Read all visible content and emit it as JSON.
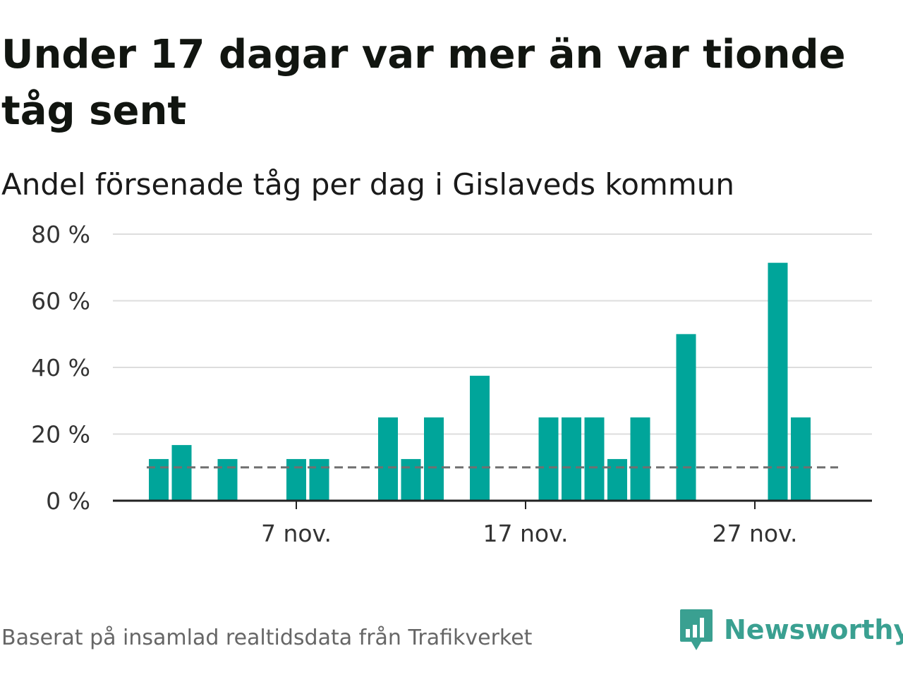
{
  "title": "Under 17 dagar var mer än var tionde tåg sent",
  "subtitle": "Andel försenade tåg per dag i Gislaveds kommun",
  "source": "Baserat på insamlad realtidsdata från Trafikverket",
  "brand": {
    "name": "Newsworthy",
    "logo_icon": "bar-chart-speech-bubble-icon"
  },
  "colors": {
    "bar": "#00a59a",
    "reference_line": "#707070",
    "grid": "#dddddd",
    "axis": "#222222",
    "brand": "#3aa091"
  },
  "chart_data": {
    "type": "bar",
    "x_unit": "day of November",
    "x": [
      1,
      2,
      3,
      4,
      5,
      6,
      7,
      8,
      9,
      10,
      11,
      12,
      13,
      14,
      15,
      16,
      17,
      18,
      19,
      20,
      21,
      22,
      23,
      24,
      25,
      26,
      27,
      28,
      29
    ],
    "values": [
      12.5,
      16.7,
      0,
      12.5,
      0,
      0,
      12.5,
      12.5,
      0,
      0,
      25,
      12.5,
      25,
      0,
      37.5,
      0,
      0,
      25,
      25,
      25,
      12.5,
      25,
      0,
      50,
      0,
      0,
      0,
      71.4,
      25
    ],
    "reference_line": 10,
    "ylim": [
      0,
      80
    ],
    "yticks": [
      0,
      20,
      40,
      60,
      80
    ],
    "ytick_labels": [
      "0 %",
      "20 %",
      "40 %",
      "60 %",
      "80 %"
    ],
    "xticks": [
      7,
      17,
      27
    ],
    "xtick_labels": [
      "7 nov.",
      "17 nov.",
      "27 nov."
    ],
    "grid": true,
    "xlabel": "",
    "ylabel": ""
  }
}
